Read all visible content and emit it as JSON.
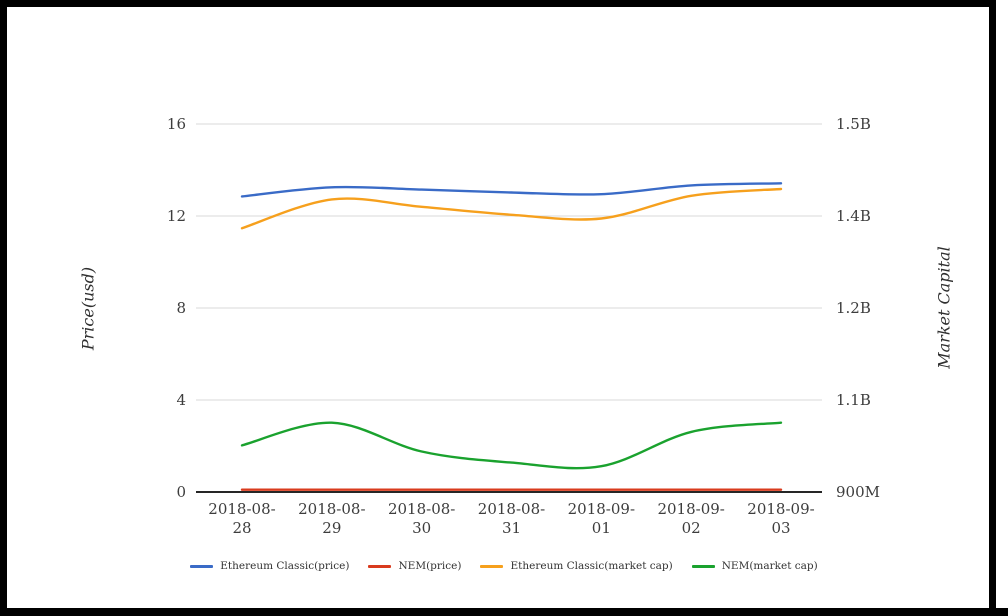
{
  "chart_data": {
    "type": "line",
    "title": "",
    "x_categories": [
      "2018-08-28",
      "2018-08-29",
      "2018-08-30",
      "2018-08-31",
      "2018-09-01",
      "2018-09-02",
      "2018-09-03"
    ],
    "left_axis": {
      "title": "Price(usd)",
      "range": [
        0,
        16
      ],
      "ticks": [
        {
          "label": "0",
          "value": 0
        },
        {
          "label": "4",
          "value": 4
        },
        {
          "label": "8",
          "value": 8
        },
        {
          "label": "12",
          "value": 12
        },
        {
          "label": "16",
          "value": 16
        }
      ]
    },
    "right_axis": {
      "title": "Market Capital",
      "range_millions": [
        900,
        1500
      ],
      "ticks": [
        {
          "label": "900M",
          "value_millions": 900
        },
        {
          "label": "1.1B",
          "value_millions": 1050
        },
        {
          "label": "1.2B",
          "value_millions": 1200
        },
        {
          "label": "1.4B",
          "value_millions": 1350
        },
        {
          "label": "1.5B",
          "value_millions": 1500
        }
      ]
    },
    "series": [
      {
        "name": "Ethereum Classic(price)",
        "axis": "left",
        "unit": "usd",
        "color": "#3a6bc7",
        "values": [
          12.85,
          13.25,
          13.15,
          13.02,
          12.95,
          13.33,
          13.42
        ]
      },
      {
        "name": "NEM(price)",
        "axis": "left",
        "unit": "usd",
        "color": "#d93b1e",
        "values": [
          0.1,
          0.1,
          0.1,
          0.1,
          0.1,
          0.1,
          0.1
        ]
      },
      {
        "name": "Ethereum Classic(market cap)",
        "axis": "right",
        "unit": "usd_millions",
        "color": "#f6a01d",
        "values": [
          1330,
          1377,
          1365,
          1352,
          1346,
          1383,
          1394
        ]
      },
      {
        "name": "NEM(market cap)",
        "axis": "right",
        "unit": "usd_millions",
        "color": "#1aa22e",
        "values": [
          976,
          1013,
          966,
          948,
          942,
          998,
          1013
        ]
      }
    ],
    "legend_position": "bottom-center",
    "grid": true,
    "colors": {
      "grid_line": "#d9d9d9",
      "axis_line": "#262626",
      "tick_text": "#3d3d3d",
      "frame": "#000000",
      "background": "#ffffff"
    }
  }
}
